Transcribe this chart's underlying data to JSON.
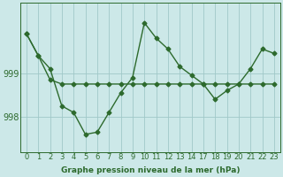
{
  "line1_y": [
    999.9,
    999.4,
    998.85,
    998.75,
    998.75,
    998.75,
    998.75,
    998.75,
    998.75,
    998.75,
    998.75,
    998.75,
    998.75,
    998.75,
    998.75,
    998.75,
    998.75,
    998.75,
    998.75,
    998.75,
    998.75,
    998.75
  ],
  "line2_y": [
    999.9,
    999.4,
    999.1,
    998.25,
    998.1,
    997.6,
    997.65,
    998.1,
    998.55,
    998.9,
    1000.15,
    999.8,
    999.55,
    999.15,
    998.95,
    998.75,
    998.4,
    998.6,
    998.75,
    999.1,
    999.55,
    999.45
  ],
  "ylim": [
    997.2,
    1000.6
  ],
  "yticks": [
    998,
    999
  ],
  "xticklabels": [
    "0",
    "1",
    "2",
    "3",
    "4",
    "5",
    "6",
    "7",
    "8",
    "9",
    "10",
    "11",
    "12",
    "13",
    "14",
    "17",
    "18",
    "19",
    "20",
    "21",
    "22",
    "23"
  ],
  "xlabel": "Graphe pression niveau de la mer (hPa)",
  "line_color": "#2d6a2d",
  "marker": "D",
  "markersize": 2.5,
  "lw": 1.0,
  "bg_color": "#cce8e8",
  "grid_color": "#a0c8c8",
  "fig_bg": "#cce8e8",
  "tick_fontsize": 6,
  "xlabel_fontsize": 6.5,
  "ylabel_fontsize": 7
}
